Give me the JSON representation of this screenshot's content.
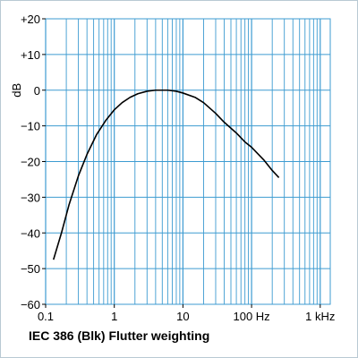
{
  "chart_data": {
    "type": "line",
    "title": "IEC 386 (Blk) Flutter weighting",
    "ylabel": "dB",
    "xlabel": "",
    "x_scale": "log",
    "xlim": [
      0.1,
      1400
    ],
    "ylim": [
      -60,
      20
    ],
    "grid": true,
    "colors": {
      "grid": "#3d9bd1",
      "line": "#000000"
    },
    "y_ticks": [
      {
        "value": 20,
        "label": "+20"
      },
      {
        "value": 10,
        "label": "+10"
      },
      {
        "value": 0,
        "label": "0"
      },
      {
        "value": -10,
        "label": "−10"
      },
      {
        "value": -20,
        "label": "−20"
      },
      {
        "value": -30,
        "label": "−30"
      },
      {
        "value": -40,
        "label": "−40"
      },
      {
        "value": -50,
        "label": "−50"
      },
      {
        "value": -60,
        "label": "−60"
      }
    ],
    "x_ticks": [
      {
        "value": 0.1,
        "label": "0.1"
      },
      {
        "value": 1,
        "label": "1"
      },
      {
        "value": 10,
        "label": "10"
      },
      {
        "value": 100,
        "label": "100 Hz"
      },
      {
        "value": 1000,
        "label": "1 kHz"
      }
    ],
    "series": [
      {
        "x": [
          0.13,
          0.17,
          0.22,
          0.3,
          0.4,
          0.55,
          0.75,
          1.0,
          1.3,
          1.7,
          2.2,
          3.0,
          4.0,
          5.0,
          6.0,
          8.0,
          10.0,
          15.0,
          20.0,
          30.0,
          40.0,
          60.0,
          80.0,
          100.0,
          150.0,
          200.0,
          250.0
        ],
        "y": [
          -47.5,
          -40,
          -32,
          -24,
          -18,
          -12.5,
          -8.5,
          -5.5,
          -3.5,
          -2.0,
          -1.0,
          -0.3,
          0,
          0,
          0,
          -0.3,
          -0.8,
          -2,
          -3.5,
          -6.5,
          -9,
          -12,
          -14.5,
          -16,
          -19.5,
          -22.5,
          -24.5
        ]
      }
    ]
  }
}
